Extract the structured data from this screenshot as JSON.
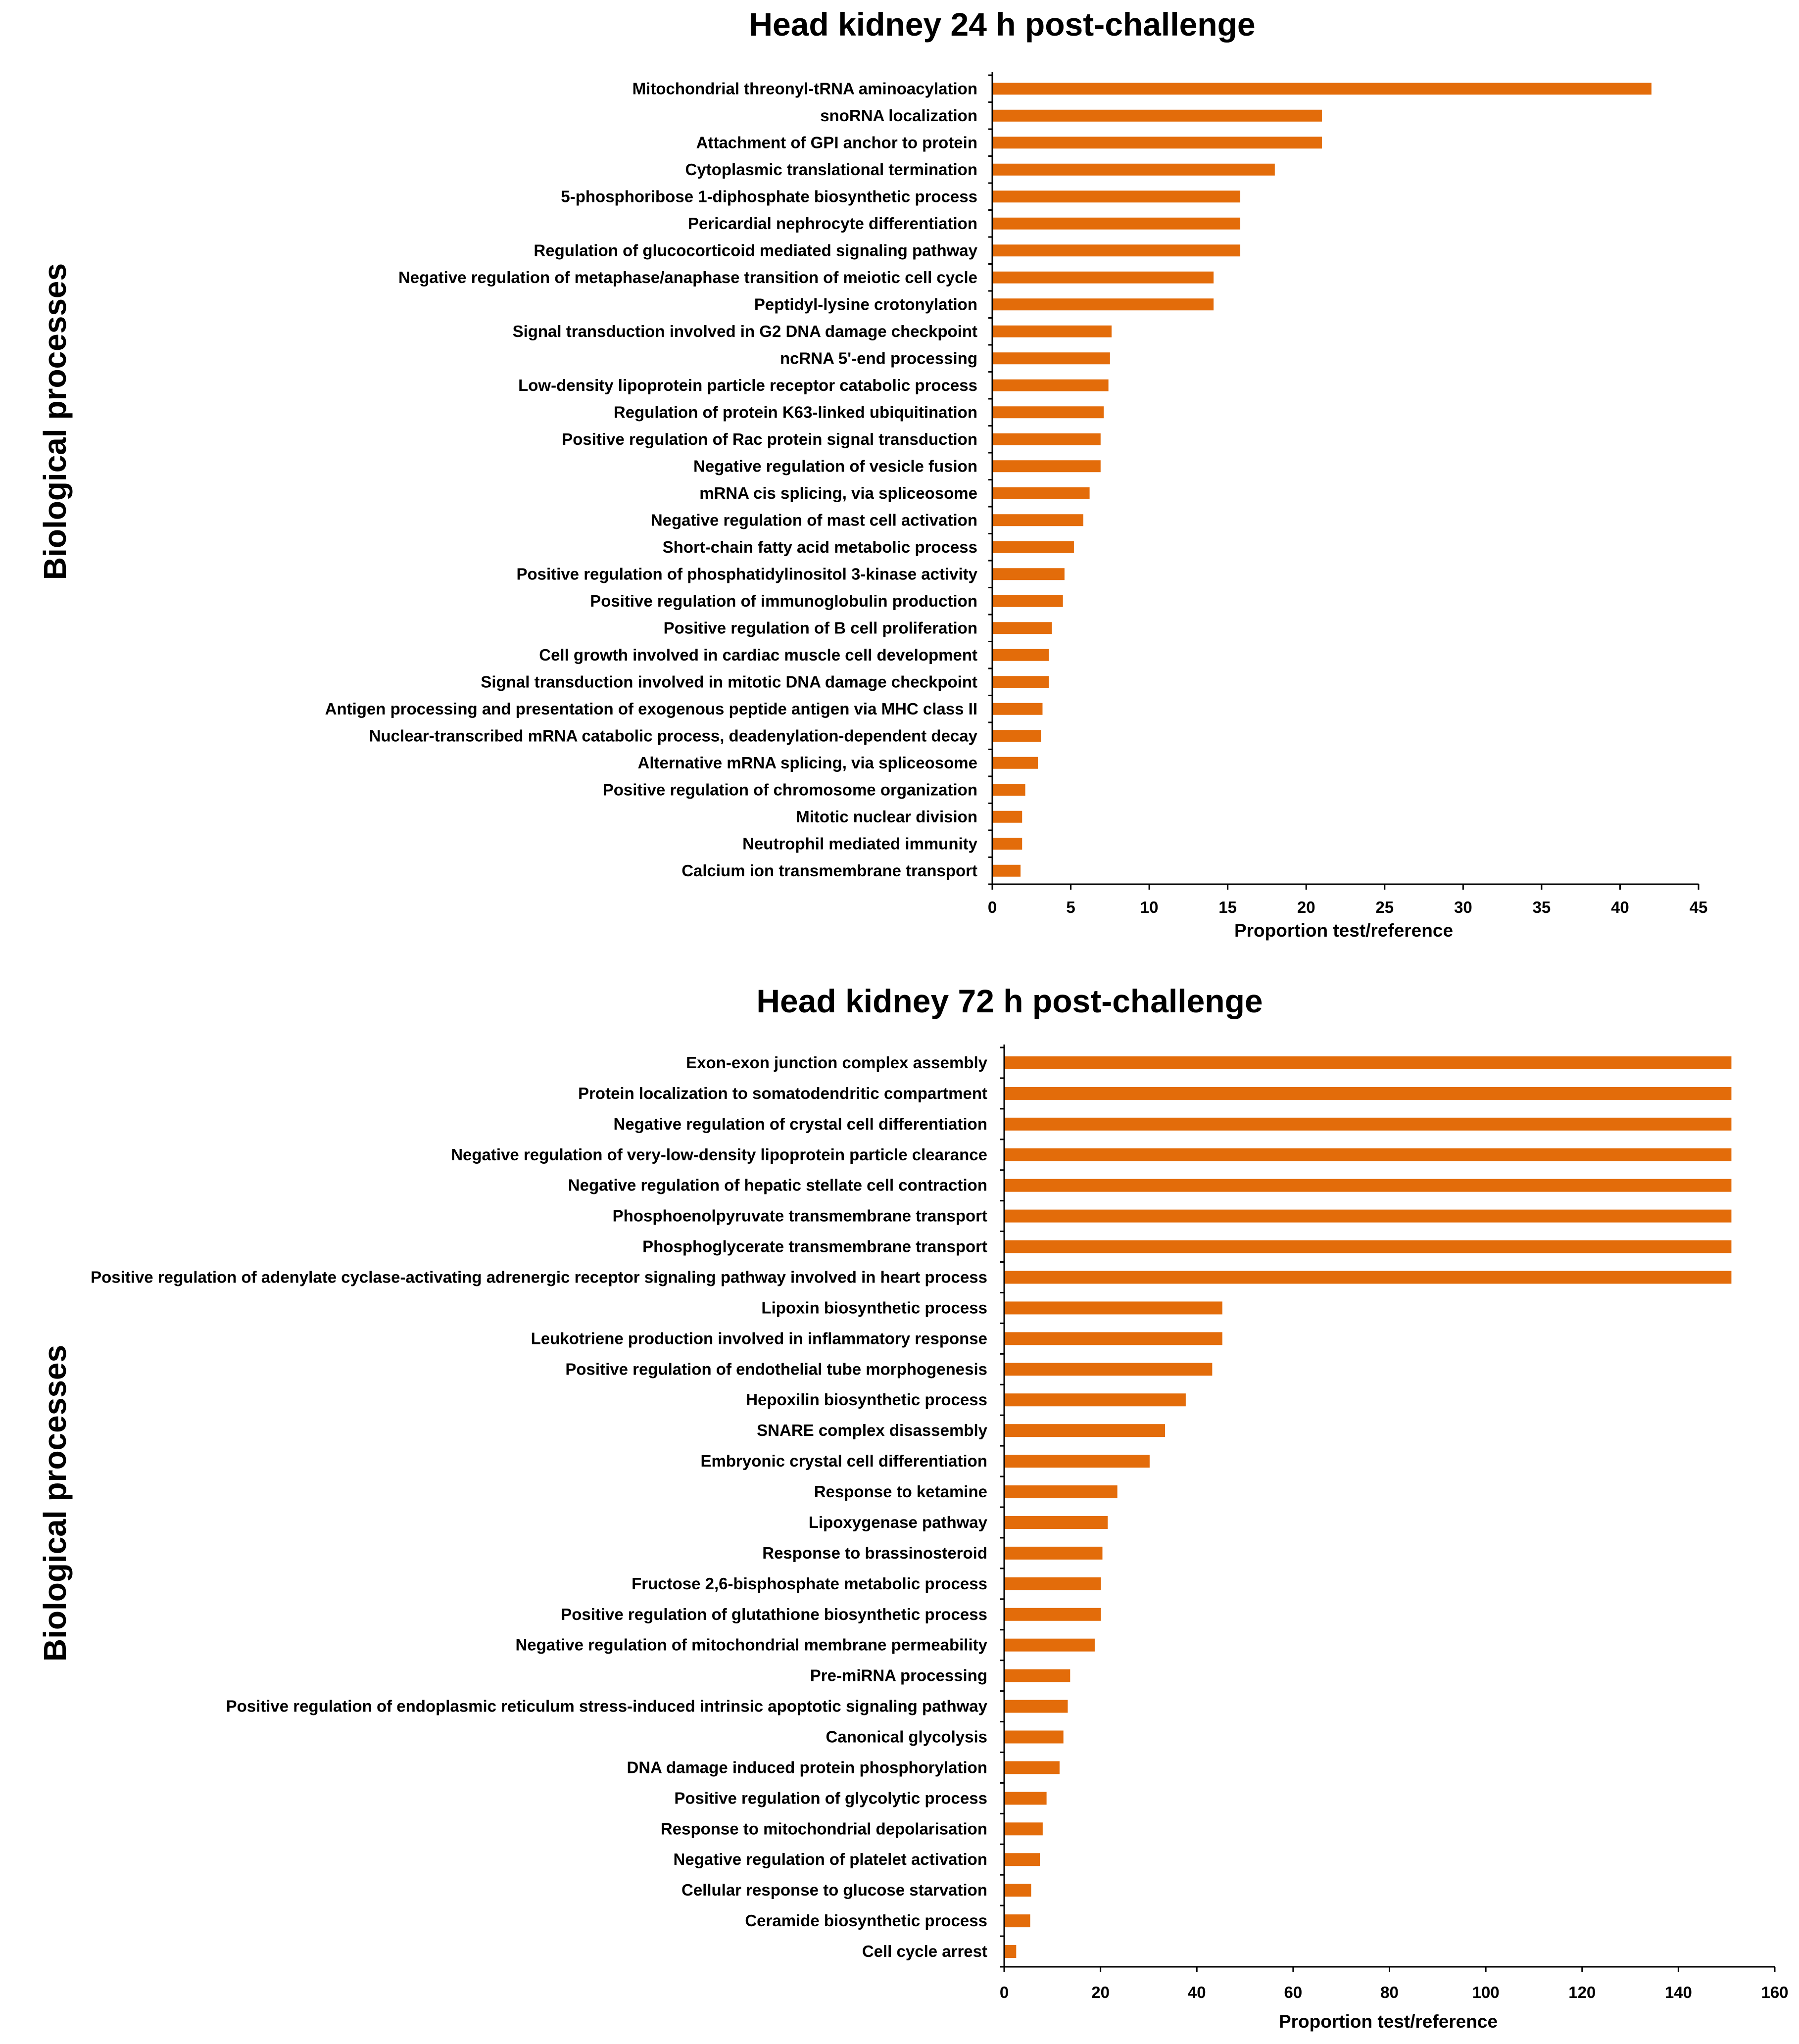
{
  "chart_data": [
    {
      "type": "bar",
      "orientation": "horizontal",
      "title": "Head kidney 24 h post-challenge",
      "ylabel": "Biological processes",
      "xlabel": "Proportion test/reference",
      "xlim": [
        0,
        45
      ],
      "xticks": [
        0,
        5,
        10,
        15,
        20,
        25,
        30,
        35,
        40,
        45
      ],
      "bar_color": "#E36C0A",
      "categories": [
        "Mitochondrial threonyl-tRNA aminoacylation",
        "snoRNA localization",
        "Attachment of GPI anchor to protein",
        "Cytoplasmic translational termination",
        "5-phosphoribose 1-diphosphate biosynthetic process",
        "Pericardial nephrocyte differentiation",
        "Regulation of glucocorticoid mediated signaling pathway",
        "Negative regulation of metaphase/anaphase transition of meiotic cell cycle",
        "Peptidyl-lysine crotonylation",
        "Signal transduction involved in G2 DNA damage checkpoint",
        "ncRNA 5'-end processing",
        "Low-density lipoprotein particle receptor catabolic process",
        "Regulation of protein K63-linked ubiquitination",
        "Positive regulation of Rac protein signal transduction",
        "Negative regulation of vesicle fusion",
        "mRNA cis splicing, via spliceosome",
        "Negative regulation of mast cell activation",
        "Short-chain fatty acid metabolic process",
        "Positive regulation of phosphatidylinositol 3-kinase activity",
        "Positive regulation of immunoglobulin production",
        "Positive regulation of B cell proliferation",
        "Cell growth involved in cardiac muscle cell development",
        "Signal transduction involved in mitotic DNA damage checkpoint",
        "Antigen processing and presentation of exogenous peptide antigen via MHC class II",
        "Nuclear-transcribed mRNA catabolic process, deadenylation-dependent decay",
        "Alternative mRNA splicing, via spliceosome",
        "Positive regulation of chromosome organization",
        "Mitotic nuclear division",
        "Neutrophil mediated immunity",
        "Calcium ion transmembrane transport"
      ],
      "values": [
        42,
        21,
        21,
        18,
        15.8,
        15.8,
        15.8,
        14.1,
        14.1,
        7.6,
        7.5,
        7.4,
        7.1,
        6.9,
        6.9,
        6.2,
        5.8,
        5.2,
        4.6,
        4.5,
        3.8,
        3.6,
        3.6,
        3.2,
        3.1,
        2.9,
        2.1,
        1.9,
        1.9,
        1.8
      ]
    },
    {
      "type": "bar",
      "orientation": "horizontal",
      "title": "Head kidney 72 h post-challenge",
      "ylabel": "Biological processes",
      "xlabel": "Proportion test/reference",
      "xlim": [
        0,
        160
      ],
      "xticks": [
        0,
        20,
        40,
        60,
        80,
        100,
        120,
        140,
        160
      ],
      "bar_color": "#E36C0A",
      "categories": [
        "Exon-exon junction complex assembly",
        "Protein localization to somatodendritic compartment",
        "Negative regulation of crystal cell differentiation",
        "Negative regulation of very-low-density lipoprotein particle clearance",
        "Negative regulation of hepatic stellate cell contraction",
        "Phosphoenolpyruvate transmembrane transport",
        "Phosphoglycerate transmembrane transport",
        "Positive regulation of adenylate cyclase-activating adrenergic receptor signaling pathway involved in heart process",
        "Lipoxin biosynthetic process",
        "Leukotriene production involved in inflammatory response",
        "Positive regulation of endothelial tube morphogenesis",
        "Hepoxilin biosynthetic process",
        "SNARE complex disassembly",
        "Embryonic crystal cell differentiation",
        "Response to ketamine",
        "Lipoxygenase pathway",
        "Response to brassinosteroid",
        "Fructose 2,6-bisphosphate metabolic process",
        "Positive regulation of glutathione biosynthetic process",
        "Negative regulation of mitochondrial membrane permeability",
        "Pre-miRNA processing",
        "Positive regulation of endoplasmic reticulum stress-induced intrinsic apoptotic signaling pathway",
        "Canonical glycolysis",
        "DNA damage induced protein phosphorylation",
        "Positive regulation of glycolytic process",
        "Response to mitochondrial depolarisation",
        "Negative regulation of platelet activation",
        "Cellular response to glucose starvation",
        "Ceramide biosynthetic process",
        "Cell cycle arrest"
      ],
      "values": [
        151,
        151,
        151,
        151,
        151,
        151,
        151,
        151,
        45.3,
        45.3,
        43.2,
        37.7,
        33.4,
        30.2,
        23.5,
        21.5,
        20.4,
        20.1,
        20.1,
        18.8,
        13.7,
        13.2,
        12.3,
        11.5,
        8.8,
        8.0,
        7.4,
        5.6,
        5.4,
        2.5
      ]
    }
  ]
}
